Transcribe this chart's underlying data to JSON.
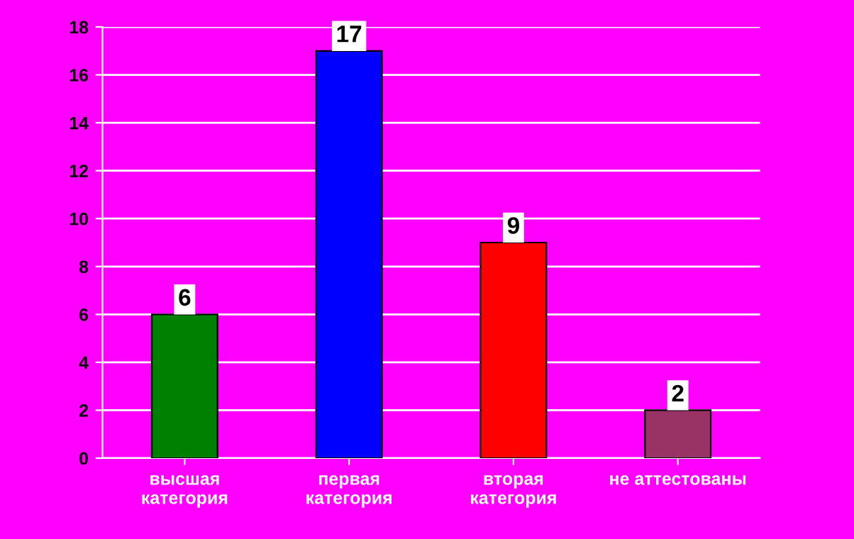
{
  "chart_data": {
    "type": "bar",
    "categories": [
      "высшая\nкатегория",
      "первая\nкатегория",
      "вторая\nкатегория",
      "не аттестованы"
    ],
    "values": [
      6,
      17,
      9,
      2
    ],
    "colors": [
      "#008000",
      "#0000ff",
      "#ff0000",
      "#993366"
    ],
    "ylim": [
      0,
      18
    ],
    "yticks": [
      0,
      2,
      4,
      6,
      8,
      10,
      12,
      14,
      16,
      18
    ],
    "grid": "y",
    "data_labels": true
  }
}
